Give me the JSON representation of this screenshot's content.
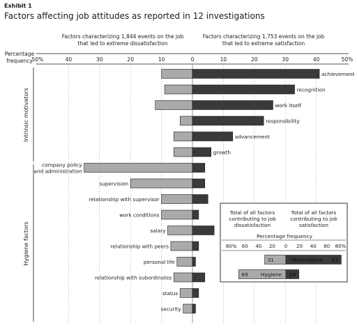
{
  "exhibit_label": "Exhibit 1",
  "title": "Factors affecting job attitudes as reported in 12 investigations",
  "left_header": [
    "Factors characterizing 1,844 events on the job",
    "that led to extreme dissatisfaction"
  ],
  "right_header": [
    "Factors characterizing 1,753 events on the job",
    "that led to extreme satisfaction"
  ],
  "axis_title": [
    "Percentage",
    "frequency"
  ],
  "groups": {
    "intrinsic": "Intrinsic motivators",
    "hygiene": "Hygiene factors"
  },
  "colors": {
    "dissatisfaction_bar": "#aaaaaa",
    "satisfaction_bar": "#3a3a3a",
    "bar_outline": "#1a1a1a",
    "grid": "#8c8c8c"
  },
  "chart_data": {
    "type": "bar",
    "orientation": "diverging-horizontal",
    "xlabel": "Percentage frequency",
    "xlim": [
      -50,
      50
    ],
    "x_ticks": [
      "50%",
      "40",
      "30",
      "20",
      "10",
      "0",
      "10",
      "20",
      "30",
      "40",
      "50%"
    ],
    "categories": [
      "achievement",
      "recognition",
      "work itself",
      "responsibility",
      "advancement",
      "growth",
      "company policy\nand administration",
      "supervision",
      "relationship with supervisor",
      "work conditions",
      "salary",
      "relationship with peers",
      "personal life",
      "relationship with subordinates",
      "status",
      "security"
    ],
    "category_groups": [
      "Intrinsic motivators",
      "Intrinsic motivators",
      "Intrinsic motivators",
      "Intrinsic motivators",
      "Intrinsic motivators",
      "Intrinsic motivators",
      "Hygiene factors",
      "Hygiene factors",
      "Hygiene factors",
      "Hygiene factors",
      "Hygiene factors",
      "Hygiene factors",
      "Hygiene factors",
      "Hygiene factors",
      "Hygiene factors",
      "Hygiene factors"
    ],
    "series": [
      {
        "key": "dissatisfaction",
        "values": [
          10,
          9,
          12,
          4,
          6,
          6,
          35,
          20,
          10,
          10,
          8,
          7,
          5,
          6,
          4,
          3
        ]
      },
      {
        "key": "satisfaction",
        "values": [
          41,
          33,
          26,
          23,
          13,
          6,
          4,
          4,
          5,
          2,
          7,
          2,
          1,
          4,
          2,
          1
        ]
      }
    ]
  },
  "inset": {
    "col_left": [
      "Total of all factors",
      "contributing to job",
      "dissatisfaction"
    ],
    "col_right": [
      "Total of all factors",
      "contributing to job",
      "satisfaction"
    ],
    "axis_title": "Percentage frequency",
    "ticks": [
      "80%",
      "60",
      "40",
      "20",
      "0",
      "20",
      "40",
      "60",
      "80%"
    ],
    "xlim": [
      -80,
      80
    ],
    "rows": [
      {
        "label": "Motivators",
        "dissatisfaction": 31,
        "satisfaction": 81
      },
      {
        "label": "Hygiene",
        "dissatisfaction": 69,
        "satisfaction": 19
      }
    ]
  }
}
